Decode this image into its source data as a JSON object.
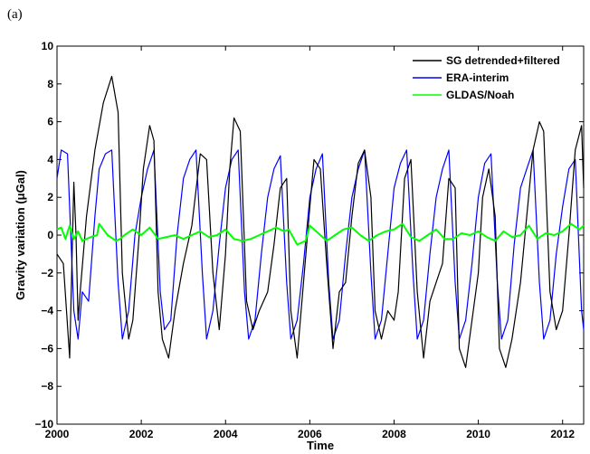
{
  "panel_label": "(a)",
  "chart_data": {
    "type": "line",
    "xlabel": "Time",
    "ylabel": "Gravity variation (μGal)",
    "xlim": [
      2000,
      2012.5
    ],
    "ylim": [
      -10,
      10
    ],
    "xticks": [
      2000,
      2002,
      2004,
      2006,
      2008,
      2010,
      2012
    ],
    "yticks": [
      -10,
      -8,
      -6,
      -4,
      -2,
      0,
      2,
      4,
      6,
      8,
      10
    ],
    "legend_position": "top-right",
    "grid": false,
    "series": [
      {
        "name": "SG detrended+filtered",
        "color": "#000000",
        "x": [
          2000.0,
          2000.15,
          2000.3,
          2000.4,
          2000.45,
          2000.5,
          2000.55,
          2000.7,
          2000.9,
          2001.1,
          2001.3,
          2001.45,
          2001.55,
          2001.7,
          2001.8,
          2001.95,
          2002.05,
          2002.2,
          2002.3,
          2002.4,
          2002.5,
          2002.65,
          2002.8,
          2003.0,
          2003.2,
          2003.4,
          2003.55,
          2003.7,
          2003.85,
          2004.0,
          2004.1,
          2004.2,
          2004.35,
          2004.5,
          2004.65,
          2004.8,
          2005.0,
          2005.15,
          2005.3,
          2005.45,
          2005.55,
          2005.7,
          2005.85,
          2006.0,
          2006.1,
          2006.25,
          2006.4,
          2006.55,
          2006.7,
          2006.85,
          2007.0,
          2007.15,
          2007.3,
          2007.45,
          2007.55,
          2007.7,
          2007.85,
          2008.0,
          2008.1,
          2008.25,
          2008.4,
          2008.55,
          2008.7,
          2008.85,
          2009.0,
          2009.15,
          2009.3,
          2009.45,
          2009.55,
          2009.7,
          2009.85,
          2010.0,
          2010.1,
          2010.25,
          2010.4,
          2010.5,
          2010.65,
          2010.8,
          2011.0,
          2011.15,
          2011.3,
          2011.45,
          2011.55,
          2011.7,
          2011.85,
          2012.0,
          2012.15,
          2012.3,
          2012.45,
          2012.5
        ],
        "y": [
          -1.0,
          -1.5,
          -6.5,
          2.8,
          0.0,
          -4.5,
          -3.0,
          1.0,
          4.5,
          7.0,
          8.4,
          6.5,
          -2.0,
          -5.5,
          -4.5,
          0.0,
          3.5,
          5.8,
          5.0,
          -3.0,
          -5.5,
          -6.5,
          -4.0,
          -1.5,
          0.5,
          4.3,
          4.0,
          -2.0,
          -5.0,
          -1.0,
          3.5,
          6.2,
          5.5,
          -3.5,
          -5.0,
          -4.0,
          -3.0,
          -0.5,
          2.5,
          3.0,
          -4.0,
          -6.5,
          -2.5,
          1.5,
          4.0,
          3.5,
          -1.5,
          -6.0,
          -3.0,
          -2.5,
          1.0,
          3.8,
          4.5,
          2.0,
          -4.0,
          -5.5,
          -4.0,
          -4.5,
          -3.0,
          3.0,
          4.0,
          -3.0,
          -6.5,
          -3.5,
          -2.5,
          -1.5,
          3.0,
          2.5,
          -6.0,
          -7.0,
          -4.5,
          -2.0,
          2.0,
          3.5,
          1.0,
          -6.0,
          -7.0,
          -5.5,
          -2.5,
          1.0,
          4.5,
          6.0,
          5.5,
          -3.0,
          -5.0,
          -4.0,
          0.0,
          4.5,
          5.8,
          2.5
        ]
      },
      {
        "name": "ERA-interim",
        "color": "#0000ff",
        "x": [
          2000.0,
          2000.1,
          2000.25,
          2000.4,
          2000.5,
          2000.6,
          2000.75,
          2000.9,
          2001.0,
          2001.15,
          2001.3,
          2001.45,
          2001.55,
          2001.7,
          2001.85,
          2002.0,
          2002.15,
          2002.3,
          2002.45,
          2002.55,
          2002.7,
          2002.85,
          2003.0,
          2003.15,
          2003.3,
          2003.45,
          2003.55,
          2003.7,
          2003.85,
          2004.0,
          2004.15,
          2004.3,
          2004.45,
          2004.55,
          2004.7,
          2004.85,
          2005.0,
          2005.15,
          2005.3,
          2005.45,
          2005.55,
          2005.7,
          2005.85,
          2006.0,
          2006.15,
          2006.3,
          2006.45,
          2006.55,
          2006.7,
          2006.85,
          2007.0,
          2007.15,
          2007.3,
          2007.45,
          2007.55,
          2007.7,
          2007.85,
          2008.0,
          2008.15,
          2008.3,
          2008.45,
          2008.55,
          2008.7,
          2008.85,
          2009.0,
          2009.15,
          2009.3,
          2009.45,
          2009.55,
          2009.7,
          2009.85,
          2010.0,
          2010.15,
          2010.3,
          2010.45,
          2010.55,
          2010.7,
          2010.85,
          2011.0,
          2011.15,
          2011.3,
          2011.45,
          2011.55,
          2011.7,
          2011.85,
          2012.0,
          2012.15,
          2012.3,
          2012.45,
          2012.5
        ],
        "y": [
          3.0,
          4.5,
          4.3,
          -4.0,
          -5.5,
          -3.0,
          -3.5,
          1.0,
          3.5,
          4.3,
          4.5,
          -2.5,
          -5.5,
          -4.0,
          0.0,
          2.0,
          3.5,
          4.5,
          -3.0,
          -5.0,
          -4.5,
          0.0,
          3.0,
          4.0,
          4.5,
          -2.0,
          -5.5,
          -4.0,
          -0.5,
          2.5,
          4.0,
          4.5,
          -3.0,
          -5.5,
          -4.5,
          -1.0,
          2.0,
          3.5,
          4.2,
          -2.5,
          -5.5,
          -4.5,
          -1.5,
          2.0,
          3.5,
          4.3,
          -2.5,
          -5.5,
          -4.5,
          -1.0,
          2.0,
          3.5,
          4.5,
          -2.0,
          -5.5,
          -4.5,
          -1.0,
          2.5,
          3.8,
          4.5,
          -2.0,
          -5.5,
          -4.5,
          -1.0,
          2.0,
          3.5,
          4.5,
          -2.5,
          -5.5,
          -4.5,
          -1.5,
          2.0,
          3.8,
          4.3,
          -2.5,
          -5.5,
          -4.5,
          -0.5,
          2.5,
          3.5,
          4.5,
          -2.5,
          -5.5,
          -4.5,
          -1.0,
          1.5,
          3.5,
          4.0,
          -4.0,
          -5.0
        ]
      },
      {
        "name": "GLDAS/Noah",
        "color": "#00ff00",
        "x": [
          2000.0,
          2000.1,
          2000.2,
          2000.3,
          2000.4,
          2000.5,
          2000.6,
          2000.8,
          2000.95,
          2001.0,
          2001.2,
          2001.4,
          2001.5,
          2001.6,
          2001.8,
          2002.0,
          2002.2,
          2002.4,
          2002.6,
          2002.8,
          2003.0,
          2003.2,
          2003.4,
          2003.6,
          2003.8,
          2004.0,
          2004.2,
          2004.4,
          2004.6,
          2004.8,
          2005.0,
          2005.2,
          2005.4,
          2005.5,
          2005.7,
          2005.9,
          2006.0,
          2006.2,
          2006.4,
          2006.6,
          2006.8,
          2007.0,
          2007.2,
          2007.4,
          2007.6,
          2007.8,
          2008.0,
          2008.2,
          2008.4,
          2008.6,
          2008.8,
          2009.0,
          2009.2,
          2009.4,
          2009.6,
          2009.8,
          2010.0,
          2010.2,
          2010.4,
          2010.6,
          2010.8,
          2011.0,
          2011.2,
          2011.4,
          2011.6,
          2011.8,
          2012.0,
          2012.2,
          2012.4,
          2012.5
        ],
        "y": [
          0.3,
          0.4,
          -0.2,
          0.5,
          -0.2,
          0.2,
          -0.3,
          -0.1,
          0.0,
          0.6,
          0.0,
          -0.3,
          -0.2,
          0.0,
          0.3,
          0.0,
          0.4,
          -0.2,
          -0.1,
          0.0,
          -0.2,
          0.0,
          0.2,
          -0.1,
          0.0,
          0.3,
          -0.2,
          -0.3,
          -0.2,
          0.0,
          0.2,
          0.4,
          0.2,
          0.3,
          -0.5,
          -0.3,
          0.5,
          0.1,
          -0.3,
          0.0,
          0.3,
          0.4,
          0.0,
          -0.3,
          0.0,
          0.2,
          0.3,
          0.6,
          -0.1,
          -0.3,
          0.0,
          0.3,
          -0.2,
          -0.2,
          0.1,
          0.0,
          0.2,
          -0.1,
          -0.3,
          0.2,
          -0.1,
          0.0,
          0.5,
          -0.2,
          0.1,
          0.0,
          0.2,
          0.6,
          0.3,
          0.5
        ]
      }
    ]
  }
}
